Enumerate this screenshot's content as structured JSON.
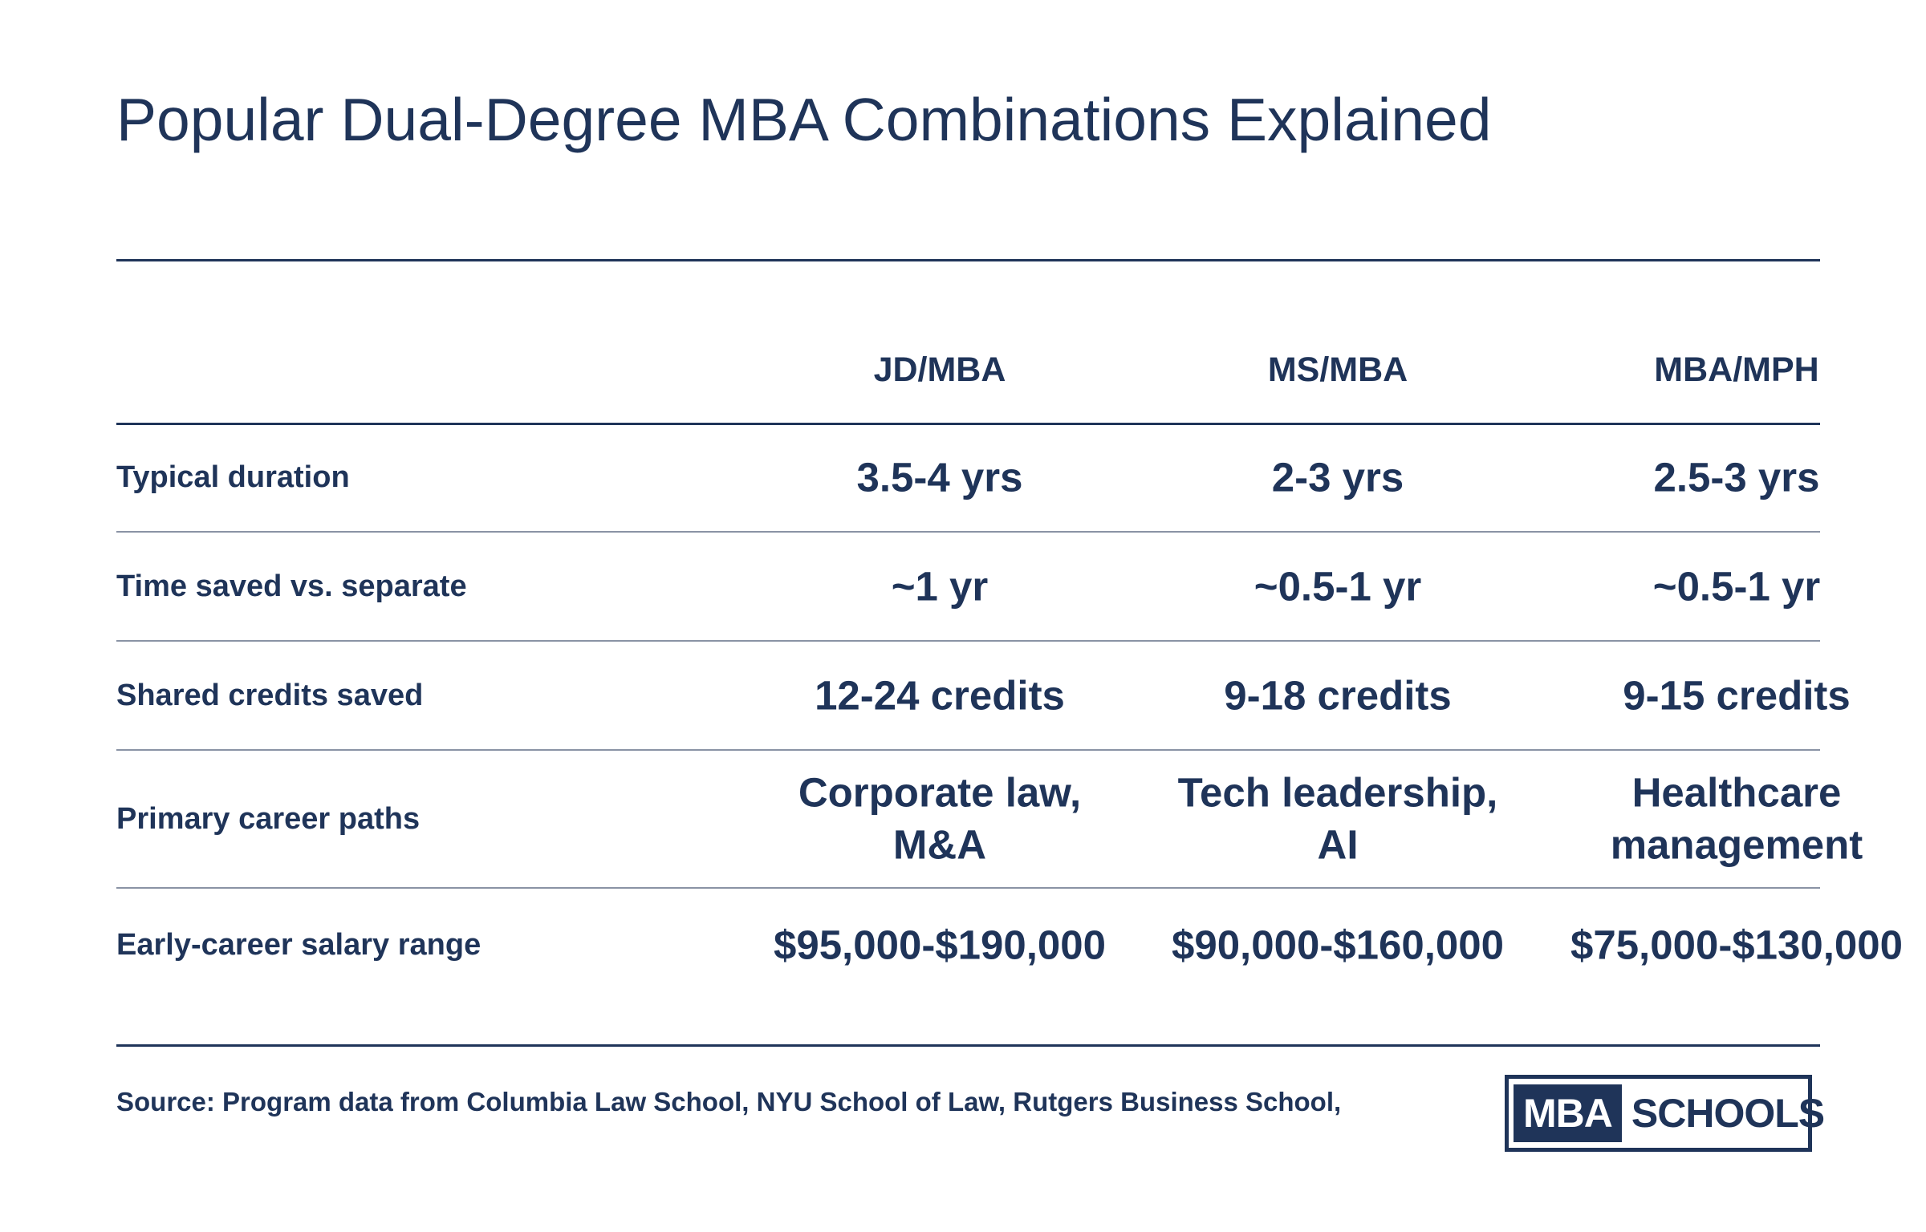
{
  "title": "Popular Dual-Degree MBA Combinations Explained",
  "columns": [
    "JD/MBA",
    "MS/MBA",
    "MBA/MPH"
  ],
  "rows": [
    {
      "label": "Typical duration",
      "values": [
        "3.5-4 yrs",
        "2-3 yrs",
        "2.5-3 yrs"
      ]
    },
    {
      "label": "Time saved vs. separate",
      "values": [
        "~1 yr",
        "~0.5-1 yr",
        "~0.5-1 yr"
      ]
    },
    {
      "label": "Shared credits saved",
      "values": [
        "12-24 credits",
        "9-18 credits",
        "9-15 credits"
      ]
    },
    {
      "label": "Primary career paths",
      "values": [
        "Corporate law,\nM&A",
        "Tech leadership,\nAI",
        "Healthcare\nmanagement"
      ]
    },
    {
      "label": "Early-career salary range",
      "values": [
        "$95,000-$190,000",
        "$90,000-$160,000",
        "$75,000-$130,000"
      ]
    }
  ],
  "source": "Source: Program data from Columbia Law School, NYU School of Law, Rutgers Business School,",
  "logo": {
    "box_text": "MBA",
    "text": "SCHOOLS"
  },
  "colors": {
    "primary": "#1f3459",
    "row_divider": "#8a93a5",
    "background": "#ffffff"
  }
}
